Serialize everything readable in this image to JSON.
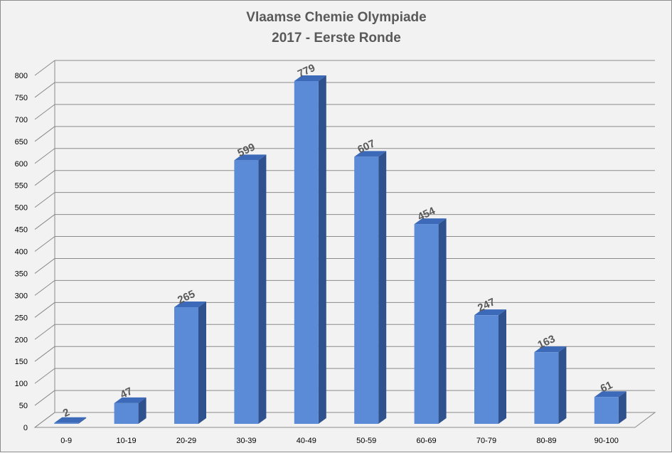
{
  "chart_data": {
    "type": "bar",
    "title_line1": "Vlaamse Chemie Olympiade",
    "title_line2": "2017 - Eerste Ronde",
    "categories": [
      "0-9",
      "10-19",
      "20-29",
      "30-39",
      "40-49",
      "50-59",
      "60-69",
      "70-79",
      "80-89",
      "90-100"
    ],
    "values": [
      2,
      47,
      265,
      599,
      779,
      607,
      454,
      247,
      163,
      61
    ],
    "yticks": [
      0,
      50,
      100,
      150,
      200,
      250,
      300,
      350,
      400,
      450,
      500,
      550,
      600,
      650,
      700,
      750,
      800
    ],
    "ylim": [
      0,
      800
    ],
    "grid": true,
    "colors": {
      "bar_front": "#5b8bd6",
      "bar_side": "#2f528f",
      "bar_top": "#3c6ab8",
      "grid": "#8a8a8a",
      "background": "#f2f2f2"
    }
  }
}
